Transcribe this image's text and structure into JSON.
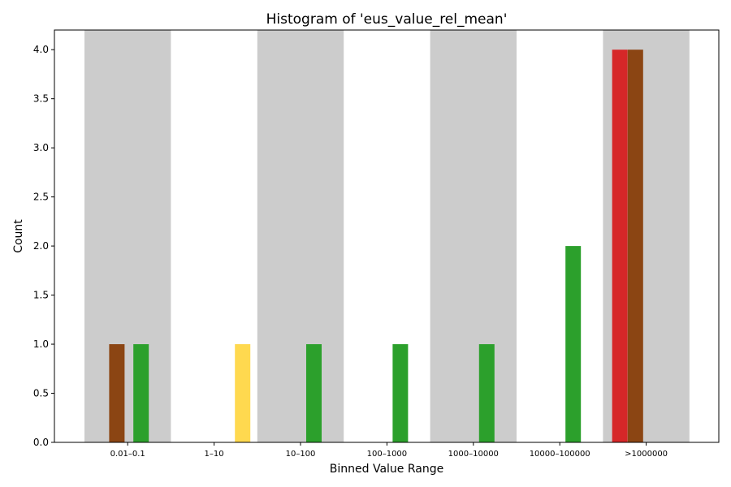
{
  "chart_data": {
    "type": "bar",
    "title": "Histogram of 'eus_value_rel_mean'",
    "xlabel": "Binned Value Range",
    "ylabel": "Count",
    "ylim": [
      0,
      4.2
    ],
    "yticks": [
      "0.0",
      "0.5",
      "1.0",
      "1.5",
      "2.0",
      "2.5",
      "3.0",
      "3.5",
      "4.0"
    ],
    "categories": [
      "0.01–0.1",
      "1–10",
      "10–100",
      "100–1000",
      "1000–10000",
      "10000–100000",
      ">1000000"
    ],
    "shaded_bins": [
      0,
      2,
      4,
      6
    ],
    "shade_color": "#cccccc",
    "bars": [
      {
        "bin": 0.375,
        "value": 1,
        "color": "#8b4513"
      },
      {
        "bin": 0.655,
        "value": 1,
        "color": "#2ca02c"
      },
      {
        "bin": 1.83,
        "value": 1,
        "color": "#ffd94f"
      },
      {
        "bin": 2.655,
        "value": 1,
        "color": "#2ca02c"
      },
      {
        "bin": 3.655,
        "value": 1,
        "color": "#2ca02c"
      },
      {
        "bin": 4.655,
        "value": 1,
        "color": "#2ca02c"
      },
      {
        "bin": 5.655,
        "value": 2,
        "color": "#2ca02c"
      },
      {
        "bin": 6.195,
        "value": 4,
        "color": "#d62728"
      },
      {
        "bin": 6.375,
        "value": 4,
        "color": "#8b4513"
      }
    ],
    "grid": false,
    "legend": "none"
  }
}
